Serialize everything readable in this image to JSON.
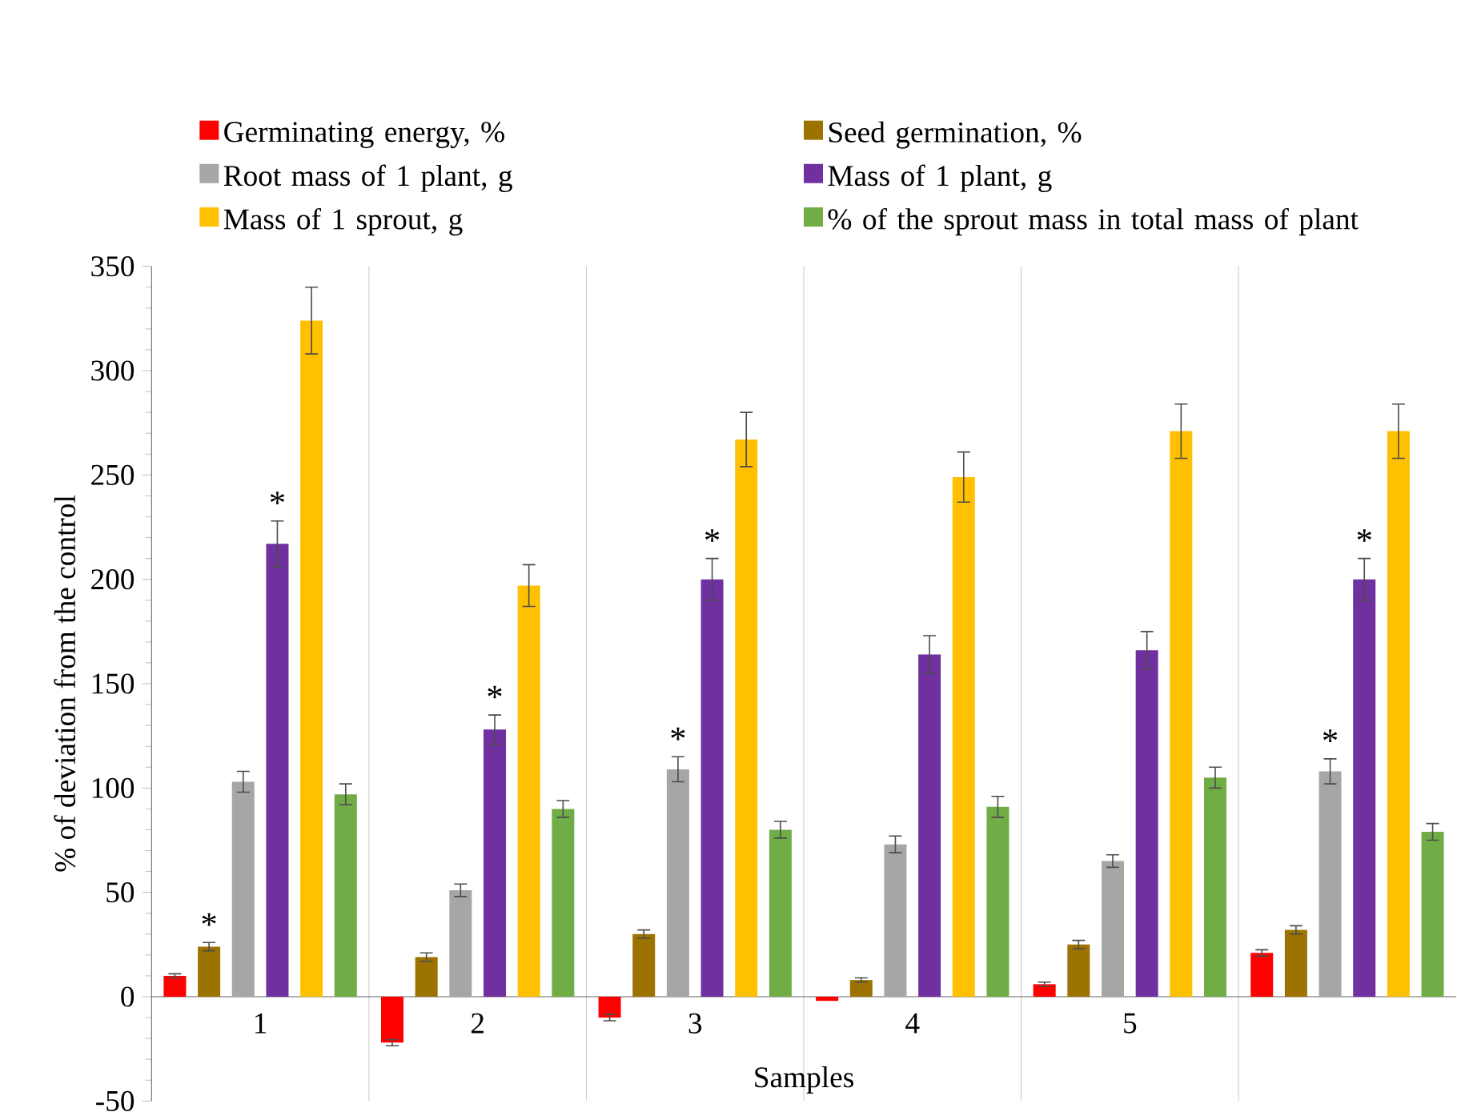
{
  "chart_data": {
    "type": "bar",
    "categories": [
      "1",
      "2",
      "3",
      "4",
      "5",
      null
    ],
    "xlabel": "Samples",
    "ylabel": "% of deviation from the control",
    "ylim": [
      -50,
      350
    ],
    "yticks": [
      -50,
      0,
      50,
      100,
      150,
      200,
      250,
      300,
      350
    ],
    "grid": "x",
    "legend": "top",
    "series": [
      {
        "name": "Germinating energy, %",
        "color": "#ff0000",
        "values": [
          10,
          -22,
          -10,
          -2,
          6,
          21
        ],
        "errors": [
          1,
          1.5,
          1.5,
          null,
          1,
          1.5
        ]
      },
      {
        "name": "Seed germination, %",
        "color": "#9c7200",
        "values": [
          24,
          19,
          30,
          8,
          25,
          32
        ],
        "errors": [
          2,
          2,
          2,
          1,
          2,
          2
        ],
        "value_labels": [
          "*",
          null,
          null,
          null,
          null,
          null
        ]
      },
      {
        "name": "Root mass of 1 plant, g",
        "color": "#a6a6a6",
        "values": [
          103,
          51,
          109,
          73,
          65,
          108
        ],
        "errors": [
          5,
          3,
          6,
          4,
          3,
          6
        ],
        "value_labels": [
          null,
          null,
          "*",
          null,
          null,
          "*"
        ]
      },
      {
        "name": "Mass of 1 plant, g",
        "color": "#7030a0",
        "values": [
          217,
          128,
          200,
          164,
          166,
          200
        ],
        "errors": [
          11,
          7,
          10,
          9,
          9,
          10
        ],
        "value_labels": [
          "*",
          "*",
          "*",
          null,
          null,
          "*"
        ]
      },
      {
        "name": "Mass of 1 sprout, g",
        "color": "#ffc000",
        "values": [
          324,
          197,
          267,
          249,
          271,
          271
        ],
        "errors": [
          16,
          10,
          13,
          12,
          13,
          13
        ]
      },
      {
        "name": "% of the sprout mass in total mass of plant",
        "color": "#70ad47",
        "values": [
          97,
          90,
          80,
          91,
          105,
          79
        ],
        "errors": [
          5,
          4,
          4,
          5,
          5,
          4
        ]
      }
    ]
  }
}
